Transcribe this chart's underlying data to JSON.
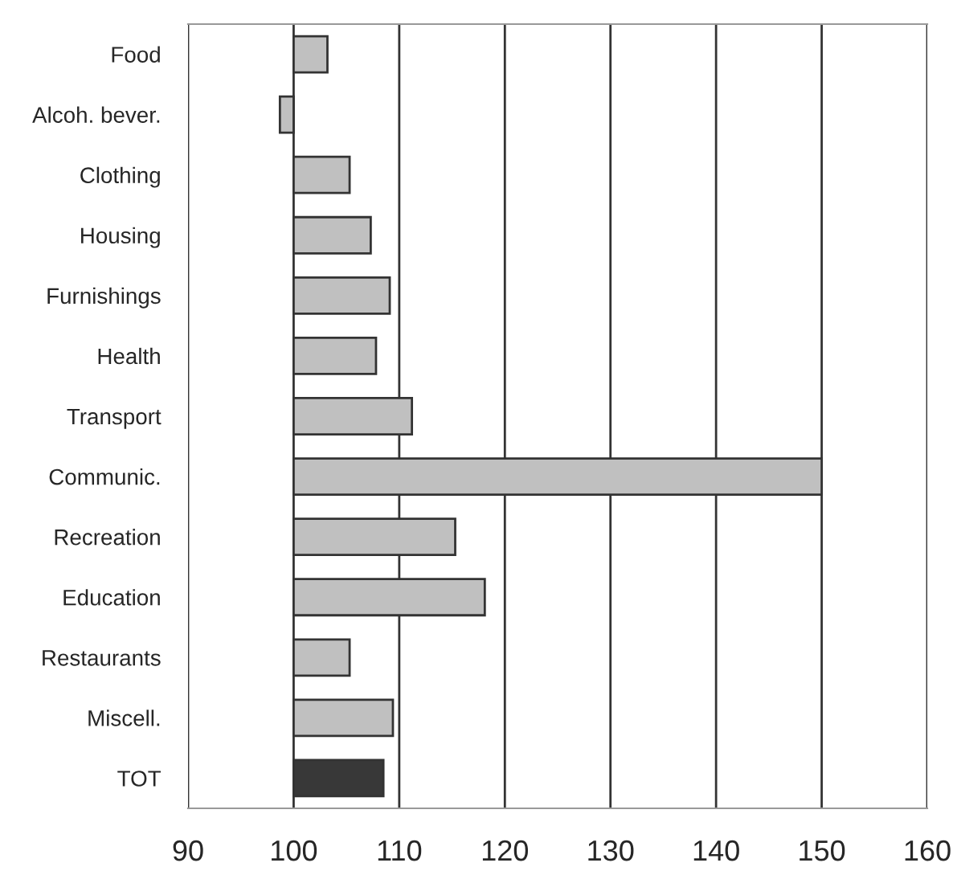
{
  "chart_data": {
    "type": "bar",
    "orientation": "horizontal",
    "categories": [
      "Food",
      "Alcoh. bever.",
      "Clothing",
      "Housing",
      "Furnishings",
      "Health",
      "Transport",
      "Communic.",
      "Recreation",
      "Education",
      "Restaurants",
      "Miscell.",
      "TOT"
    ],
    "base": [
      100,
      100,
      100,
      100,
      100,
      100,
      100,
      100,
      100,
      100,
      100,
      100,
      100
    ],
    "values": [
      3.2,
      -1.3,
      5.3,
      7.3,
      9.1,
      7.8,
      11.2,
      50,
      15.3,
      18.1,
      5.3,
      9.4,
      8.5
    ],
    "colors": [
      "#c0c0c0",
      "#c0c0c0",
      "#c0c0c0",
      "#c0c0c0",
      "#c0c0c0",
      "#c0c0c0",
      "#c0c0c0",
      "#c0c0c0",
      "#c0c0c0",
      "#c0c0c0",
      "#c0c0c0",
      "#c0c0c0",
      "#383838"
    ],
    "xlim": [
      90,
      160
    ],
    "xticks": [
      90,
      100,
      110,
      120,
      130,
      140,
      150,
      160
    ],
    "grid": "x"
  }
}
